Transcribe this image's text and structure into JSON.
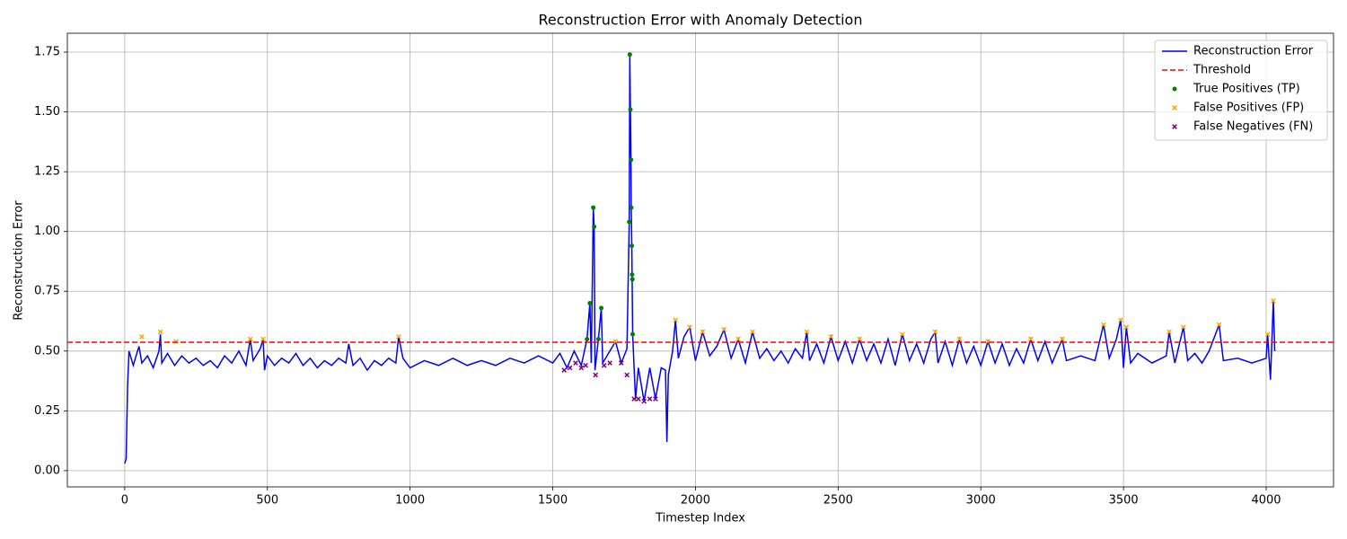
{
  "chart_data": {
    "type": "line",
    "title": "Reconstruction Error with Anomaly Detection",
    "x_label": "Timestep Index",
    "y_label": "Reconstruction Error",
    "xlim": [
      -201,
      4236
    ],
    "ylim": [
      -0.068,
      1.829
    ],
    "xticks": [
      0,
      500,
      1000,
      1500,
      2000,
      2500,
      3000,
      3500,
      4000
    ],
    "yticks": [
      {
        "value": 0,
        "label": "0.00"
      },
      {
        "value": 0.25,
        "label": "0.25"
      },
      {
        "value": 0.5,
        "label": "0.50"
      },
      {
        "value": 0.75,
        "label": "0.75"
      },
      {
        "value": 1,
        "label": "1.00"
      },
      {
        "value": 1.25,
        "label": "1.25"
      },
      {
        "value": 1.5,
        "label": "1.50"
      },
      {
        "value": 1.75,
        "label": "1.75"
      }
    ],
    "grid": true,
    "legend": "upper right",
    "threshold": {
      "name": "Threshold",
      "color": "#ff0000",
      "value": 0.537
    },
    "series": [
      {
        "name": "Reconstruction Error",
        "color": "#0000ff",
        "kind": "line",
        "x": [
          0,
          5,
          10,
          15,
          30,
          50,
          60,
          80,
          100,
          120,
          125,
          130,
          150,
          175,
          200,
          225,
          250,
          275,
          300,
          325,
          350,
          375,
          400,
          425,
          440,
          450,
          475,
          485,
          490,
          500,
          525,
          550,
          575,
          600,
          625,
          650,
          675,
          700,
          725,
          750,
          775,
          785,
          800,
          825,
          850,
          875,
          900,
          925,
          950,
          960,
          975,
          1000,
          1050,
          1100,
          1150,
          1200,
          1250,
          1300,
          1350,
          1400,
          1450,
          1500,
          1525,
          1550,
          1575,
          1600,
          1620,
          1630,
          1635,
          1642,
          1645,
          1648,
          1660,
          1670,
          1675,
          1700,
          1720,
          1740,
          1760,
          1768,
          1770,
          1772,
          1774,
          1775,
          1777,
          1778,
          1780,
          1785,
          1790,
          1800,
          1820,
          1840,
          1860,
          1880,
          1895,
          1900,
          1905,
          1920,
          1930,
          1940,
          1960,
          1980,
          2000,
          2025,
          2050,
          2075,
          2100,
          2125,
          2150,
          2175,
          2200,
          2225,
          2250,
          2275,
          2300,
          2325,
          2350,
          2375,
          2390,
          2400,
          2425,
          2450,
          2475,
          2500,
          2525,
          2550,
          2575,
          2600,
          2625,
          2650,
          2675,
          2700,
          2725,
          2750,
          2775,
          2800,
          2825,
          2840,
          2850,
          2875,
          2900,
          2925,
          2950,
          2975,
          3000,
          3025,
          3050,
          3075,
          3100,
          3125,
          3150,
          3175,
          3200,
          3225,
          3250,
          3285,
          3300,
          3350,
          3400,
          3430,
          3450,
          3475,
          3490,
          3500,
          3510,
          3525,
          3550,
          3600,
          3650,
          3660,
          3680,
          3710,
          3725,
          3750,
          3775,
          3800,
          3835,
          3850,
          3900,
          3950,
          4000,
          4005,
          4015,
          4025,
          4030
        ],
        "values": [
          0.03,
          0.05,
          0.35,
          0.5,
          0.44,
          0.52,
          0.45,
          0.48,
          0.43,
          0.5,
          0.57,
          0.45,
          0.49,
          0.44,
          0.48,
          0.45,
          0.47,
          0.44,
          0.46,
          0.43,
          0.48,
          0.45,
          0.5,
          0.44,
          0.55,
          0.46,
          0.51,
          0.55,
          0.42,
          0.48,
          0.44,
          0.47,
          0.45,
          0.49,
          0.44,
          0.47,
          0.43,
          0.46,
          0.44,
          0.47,
          0.45,
          0.53,
          0.44,
          0.47,
          0.42,
          0.46,
          0.44,
          0.47,
          0.45,
          0.56,
          0.47,
          0.43,
          0.46,
          0.44,
          0.47,
          0.44,
          0.46,
          0.44,
          0.47,
          0.45,
          0.48,
          0.45,
          0.49,
          0.43,
          0.5,
          0.44,
          0.55,
          0.7,
          0.45,
          1.1,
          1.02,
          0.42,
          0.55,
          0.68,
          0.45,
          0.5,
          0.54,
          0.45,
          0.51,
          1.04,
          1.74,
          1.51,
          1.3,
          1.1,
          0.94,
          0.82,
          0.57,
          0.43,
          0.3,
          0.43,
          0.29,
          0.43,
          0.3,
          0.43,
          0.42,
          0.12,
          0.4,
          0.5,
          0.63,
          0.47,
          0.56,
          0.6,
          0.46,
          0.58,
          0.48,
          0.52,
          0.59,
          0.47,
          0.55,
          0.45,
          0.58,
          0.47,
          0.51,
          0.46,
          0.5,
          0.45,
          0.51,
          0.47,
          0.58,
          0.46,
          0.53,
          0.45,
          0.56,
          0.46,
          0.54,
          0.45,
          0.55,
          0.46,
          0.53,
          0.45,
          0.55,
          0.44,
          0.57,
          0.46,
          0.53,
          0.45,
          0.55,
          0.58,
          0.45,
          0.54,
          0.44,
          0.55,
          0.45,
          0.52,
          0.44,
          0.54,
          0.45,
          0.53,
          0.44,
          0.51,
          0.45,
          0.55,
          0.46,
          0.54,
          0.45,
          0.55,
          0.46,
          0.48,
          0.46,
          0.61,
          0.47,
          0.55,
          0.63,
          0.43,
          0.6,
          0.45,
          0.49,
          0.45,
          0.48,
          0.58,
          0.45,
          0.6,
          0.46,
          0.49,
          0.45,
          0.5,
          0.61,
          0.46,
          0.47,
          0.45,
          0.47,
          0.57,
          0.38,
          0.71,
          0.5
        ]
      },
      {
        "name": "True Positives (TP)",
        "color": "#008000",
        "kind": "scatter",
        "marker": "circle",
        "x": [
          1620,
          1630,
          1642,
          1645,
          1660,
          1670,
          1768,
          1770,
          1772,
          1774,
          1775,
          1777,
          1778,
          1779,
          1780
        ],
        "values": [
          0.55,
          0.7,
          1.1,
          1.02,
          0.55,
          0.68,
          1.04,
          1.74,
          1.51,
          1.3,
          1.1,
          0.94,
          0.82,
          0.8,
          0.57
        ]
      },
      {
        "name": "False Positives (FP)",
        "color": "#ffa500",
        "kind": "scatter",
        "marker": "x",
        "x": [
          60,
          125,
          180,
          440,
          485,
          960,
          1720,
          1930,
          1980,
          2025,
          2100,
          2150,
          2200,
          2390,
          2475,
          2575,
          2725,
          2840,
          2925,
          3025,
          3175,
          3285,
          3430,
          3490,
          3510,
          3660,
          3710,
          3835,
          4005,
          4025
        ],
        "values": [
          0.56,
          0.58,
          0.54,
          0.55,
          0.55,
          0.56,
          0.54,
          0.63,
          0.6,
          0.58,
          0.59,
          0.55,
          0.58,
          0.58,
          0.56,
          0.55,
          0.57,
          0.58,
          0.55,
          0.54,
          0.55,
          0.55,
          0.61,
          0.63,
          0.6,
          0.58,
          0.6,
          0.61,
          0.57,
          0.71
        ]
      },
      {
        "name": "False Negatives (FN)",
        "color": "#800080",
        "kind": "scatter",
        "marker": "x",
        "x": [
          1540,
          1560,
          1580,
          1600,
          1615,
          1650,
          1680,
          1700,
          1740,
          1760,
          1785,
          1800,
          1820,
          1840,
          1860
        ],
        "values": [
          0.42,
          0.43,
          0.45,
          0.43,
          0.44,
          0.4,
          0.44,
          0.45,
          0.45,
          0.4,
          0.3,
          0.3,
          0.29,
          0.3,
          0.3
        ]
      }
    ]
  }
}
